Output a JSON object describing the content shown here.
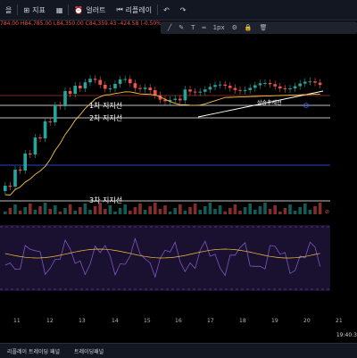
{
  "toolbar": {
    "left_fragment": "을",
    "indicators_label": "지표",
    "alert_label": "얼러트",
    "replay_label": "리플레이"
  },
  "ohlc_text": "784.00 H84,785.00 L84,350.00 C84,359.43 -424.58 (-0.50%)",
  "drawbar": {
    "size_label": "1px"
  },
  "support_lines": [
    {
      "label": "1차 지지선"
    },
    {
      "label": "2차 지지선"
    },
    {
      "label": "3차 지지선"
    }
  ],
  "trendline_label": "상승추세선",
  "time_axis": [
    "11",
    "12",
    "13",
    "14",
    "15",
    "16",
    "17",
    "18",
    "19",
    "20",
    "21"
  ],
  "clock_text": "19:40:3",
  "bottom_tabs": [
    "리플레이 트레이딩 패널",
    "트레이딩패널"
  ],
  "colors": {
    "up": "#26a69a",
    "down": "#ef5350",
    "ma": "#f5c242",
    "rsi": "#7e57c2"
  }
}
